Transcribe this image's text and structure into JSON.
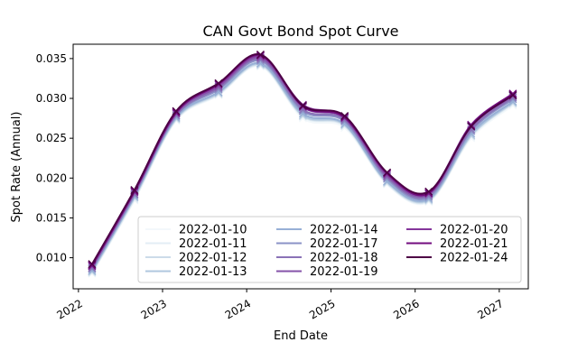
{
  "chart_data": {
    "type": "line",
    "title": "CAN Govt Bond Spot Curve",
    "xlabel": "End Date",
    "ylabel": "Spot Rate (Annual)",
    "xlim": [
      "2021-12-09",
      "2027-05-07"
    ],
    "ylim": [
      0.0061,
      0.0368
    ],
    "x_ticks": [
      "2022",
      "2023",
      "2024",
      "2025",
      "2026",
      "2027"
    ],
    "x_tick_dates": [
      "2022-01-01",
      "2023-01-01",
      "2024-01-01",
      "2025-01-01",
      "2026-01-01",
      "2027-01-01"
    ],
    "y_ticks": [
      "0.010",
      "0.015",
      "0.020",
      "0.025",
      "0.030",
      "0.035"
    ],
    "y_tick_values": [
      0.01,
      0.015,
      0.02,
      0.025,
      0.03,
      0.035
    ],
    "marker": "x",
    "grid": false,
    "legend_position": "lower-right",
    "legend_columns": 3,
    "x": [
      "2022-03-01",
      "2022-09-01",
      "2023-03-01",
      "2023-09-01",
      "2024-03-01",
      "2024-09-01",
      "2025-03-01",
      "2025-09-01",
      "2026-03-01",
      "2026-09-01",
      "2027-03-01"
    ],
    "series": [
      {
        "name": "2022-01-10",
        "color": "#f3f8fb",
        "values": [
          0.008,
          0.0172,
          0.0272,
          0.0304,
          0.034,
          0.0275,
          0.0263,
          0.0192,
          0.017,
          0.025,
          0.0291
        ]
      },
      {
        "name": "2022-01-11",
        "color": "#e3eef5",
        "values": [
          0.0081,
          0.0173,
          0.0273,
          0.0305,
          0.0341,
          0.0277,
          0.0265,
          0.0193,
          0.0171,
          0.0252,
          0.0293
        ]
      },
      {
        "name": "2022-01-12",
        "color": "#ccdbe9",
        "values": [
          0.0082,
          0.0175,
          0.0274,
          0.0306,
          0.0342,
          0.0278,
          0.0266,
          0.0194,
          0.0172,
          0.0253,
          0.0294
        ]
      },
      {
        "name": "2022-01-13",
        "color": "#b0c7df",
        "values": [
          0.0083,
          0.0176,
          0.0275,
          0.0307,
          0.0343,
          0.0279,
          0.0267,
          0.0195,
          0.0173,
          0.0254,
          0.0295
        ]
      },
      {
        "name": "2022-01-14",
        "color": "#98b0d6",
        "values": [
          0.0084,
          0.0177,
          0.0276,
          0.0308,
          0.0344,
          0.0281,
          0.0268,
          0.0196,
          0.0174,
          0.0256,
          0.0296
        ]
      },
      {
        "name": "2022-01-17",
        "color": "#8b93c7",
        "values": [
          0.0086,
          0.0179,
          0.0278,
          0.0311,
          0.0347,
          0.0284,
          0.0271,
          0.0199,
          0.0176,
          0.0259,
          0.0299
        ]
      },
      {
        "name": "2022-01-18",
        "color": "#8a72b7",
        "values": [
          0.0087,
          0.018,
          0.0279,
          0.0313,
          0.0349,
          0.0286,
          0.0273,
          0.0201,
          0.0178,
          0.0261,
          0.0301
        ]
      },
      {
        "name": "2022-01-19",
        "color": "#8653a9",
        "values": [
          0.0089,
          0.0182,
          0.0281,
          0.0315,
          0.0351,
          0.0289,
          0.0275,
          0.0203,
          0.018,
          0.0264,
          0.0303
        ]
      },
      {
        "name": "2022-01-20",
        "color": "#84359a",
        "values": [
          0.0091,
          0.0184,
          0.0283,
          0.0317,
          0.0353,
          0.0292,
          0.0277,
          0.0205,
          0.0182,
          0.0267,
          0.0305
        ]
      },
      {
        "name": "2022-01-21",
        "color": "#730c7f",
        "values": [
          0.009,
          0.0183,
          0.0282,
          0.0318,
          0.0354,
          0.029,
          0.0276,
          0.0206,
          0.0181,
          0.0266,
          0.0306
        ]
      },
      {
        "name": "2022-01-24",
        "color": "#4d0045",
        "values": [
          0.0092,
          0.0185,
          0.0284,
          0.0319,
          0.0355,
          0.0291,
          0.0278,
          0.0207,
          0.0183,
          0.0265,
          0.0304
        ]
      }
    ]
  }
}
